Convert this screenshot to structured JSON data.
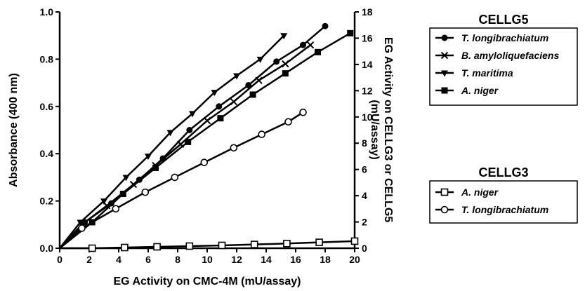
{
  "chart_data": {
    "type": "line",
    "xlabel": "EG Activity on CMC-4M (mU/assay)",
    "ylabel": "Absorbance (400 nm)",
    "y2label_line1": "EG Activity on CELLG3 or CELLG5",
    "y2label_line2": "(mU/assay)",
    "xlim": [
      0,
      20
    ],
    "ylim": [
      0,
      1.0
    ],
    "y2lim": [
      0,
      18
    ],
    "x_ticks": [
      "0",
      "2",
      "4",
      "6",
      "8",
      "10",
      "12",
      "14",
      "16",
      "18",
      "20"
    ],
    "y_ticks": [
      "0.0",
      "0.2",
      "0.4",
      "0.6",
      "0.8",
      "1.0"
    ],
    "y2_ticks": [
      "0",
      "2",
      "4",
      "6",
      "8",
      "10",
      "12",
      "14",
      "16",
      "18"
    ],
    "legends": [
      {
        "title": "CELLG5",
        "series": [
          0,
          1,
          2,
          3
        ]
      },
      {
        "title": "CELLG3",
        "series": [
          4,
          5
        ]
      }
    ],
    "series": [
      {
        "name": "T. longibrachiatum",
        "marker": "circle-filled",
        "x": [
          0,
          1.7,
          3.5,
          5.4,
          7.0,
          8.8,
          10.8,
          12.8,
          14.7,
          16.5,
          18.0
        ],
        "y": [
          0,
          0.11,
          0.19,
          0.29,
          0.38,
          0.5,
          0.6,
          0.69,
          0.79,
          0.86,
          0.94
        ]
      },
      {
        "name": "B. amyloliquefaciens",
        "marker": "x",
        "x": [
          0,
          1.5,
          3.2,
          5.0,
          6.5,
          8.2,
          10.0,
          11.8,
          13.5,
          15.3,
          17.0
        ],
        "y": [
          0,
          0.1,
          0.18,
          0.27,
          0.35,
          0.44,
          0.54,
          0.62,
          0.71,
          0.78,
          0.86
        ]
      },
      {
        "name": "T. maritima",
        "marker": "triangle-down",
        "x": [
          0,
          1.4,
          3.0,
          4.5,
          6.0,
          7.5,
          9.0,
          10.5,
          12.0,
          13.6,
          15.2
        ],
        "y": [
          0,
          0.11,
          0.2,
          0.3,
          0.39,
          0.49,
          0.57,
          0.66,
          0.73,
          0.8,
          0.9
        ]
      },
      {
        "name": "A. niger",
        "marker": "square-filled",
        "x": [
          0,
          2.2,
          4.3,
          6.5,
          8.7,
          10.9,
          13.1,
          15.3,
          17.5,
          19.7
        ],
        "y": [
          0,
          0.11,
          0.23,
          0.34,
          0.45,
          0.55,
          0.65,
          0.74,
          0.83,
          0.91
        ]
      },
      {
        "name": "A. niger",
        "marker": "square-open",
        "x": [
          0,
          2.2,
          4.4,
          6.6,
          8.8,
          11.0,
          13.2,
          15.4,
          17.6,
          20.0
        ],
        "y": [
          0,
          0.0,
          0.003,
          0.006,
          0.009,
          0.012,
          0.016,
          0.02,
          0.025,
          0.03
        ]
      },
      {
        "name": "T. longibrachiatum",
        "marker": "circle-open",
        "x": [
          0,
          1.5,
          3.8,
          5.8,
          7.8,
          9.8,
          11.8,
          13.7,
          15.5,
          16.5
        ],
        "y": [
          0,
          0.085,
          0.167,
          0.237,
          0.3,
          0.363,
          0.425,
          0.482,
          0.535,
          0.575
        ]
      }
    ]
  }
}
